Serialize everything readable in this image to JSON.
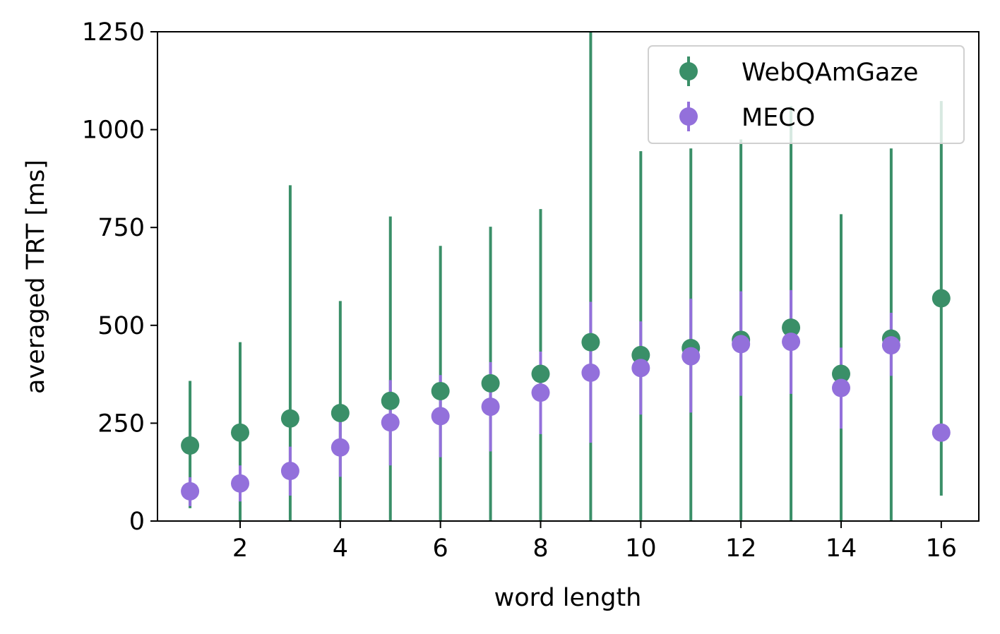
{
  "chart_data": {
    "type": "scatter",
    "title": "",
    "xlabel": "word length",
    "ylabel": "averaged TRT [ms]",
    "xlim": [
      0.35,
      16.75
    ],
    "ylim": [
      0,
      1250
    ],
    "xticks": [
      2,
      4,
      6,
      8,
      10,
      12,
      14,
      16
    ],
    "yticks": [
      0,
      250,
      500,
      750,
      1000,
      1250
    ],
    "grid": false,
    "legend_position": "top-right",
    "series": [
      {
        "name": "WebQAmGaze",
        "color": "#3a8f68",
        "x": [
          1,
          2,
          3,
          4,
          5,
          6,
          7,
          8,
          9,
          10,
          11,
          12,
          13,
          14,
          15,
          16
        ],
        "y": [
          193,
          226,
          262,
          276,
          307,
          332,
          352,
          376,
          457,
          424,
          442,
          463,
          494,
          376,
          466,
          569
        ],
        "err_low": [
          33,
          0,
          0,
          0,
          0,
          0,
          0,
          0,
          0,
          0,
          0,
          0,
          0,
          0,
          0,
          65
        ],
        "err_high": [
          358,
          457,
          858,
          562,
          778,
          703,
          752,
          797,
          1250,
          945,
          952,
          975,
          1060,
          784,
          952,
          1073
        ]
      },
      {
        "name": "MECO",
        "color": "#9370db",
        "x": [
          1,
          2,
          3,
          4,
          5,
          6,
          7,
          8,
          9,
          10,
          11,
          12,
          13,
          14,
          15,
          16
        ],
        "y": [
          76,
          96,
          128,
          188,
          252,
          268,
          292,
          328,
          379,
          391,
          421,
          452,
          458,
          340,
          449,
          226
        ],
        "err_low": [
          38,
          50,
          65,
          113,
          142,
          163,
          178,
          222,
          200,
          272,
          277,
          320,
          325,
          236,
          371,
          226
        ],
        "err_high": [
          112,
          142,
          190,
          262,
          360,
          373,
          406,
          433,
          560,
          510,
          568,
          587,
          590,
          443,
          532,
          226
        ]
      }
    ]
  }
}
